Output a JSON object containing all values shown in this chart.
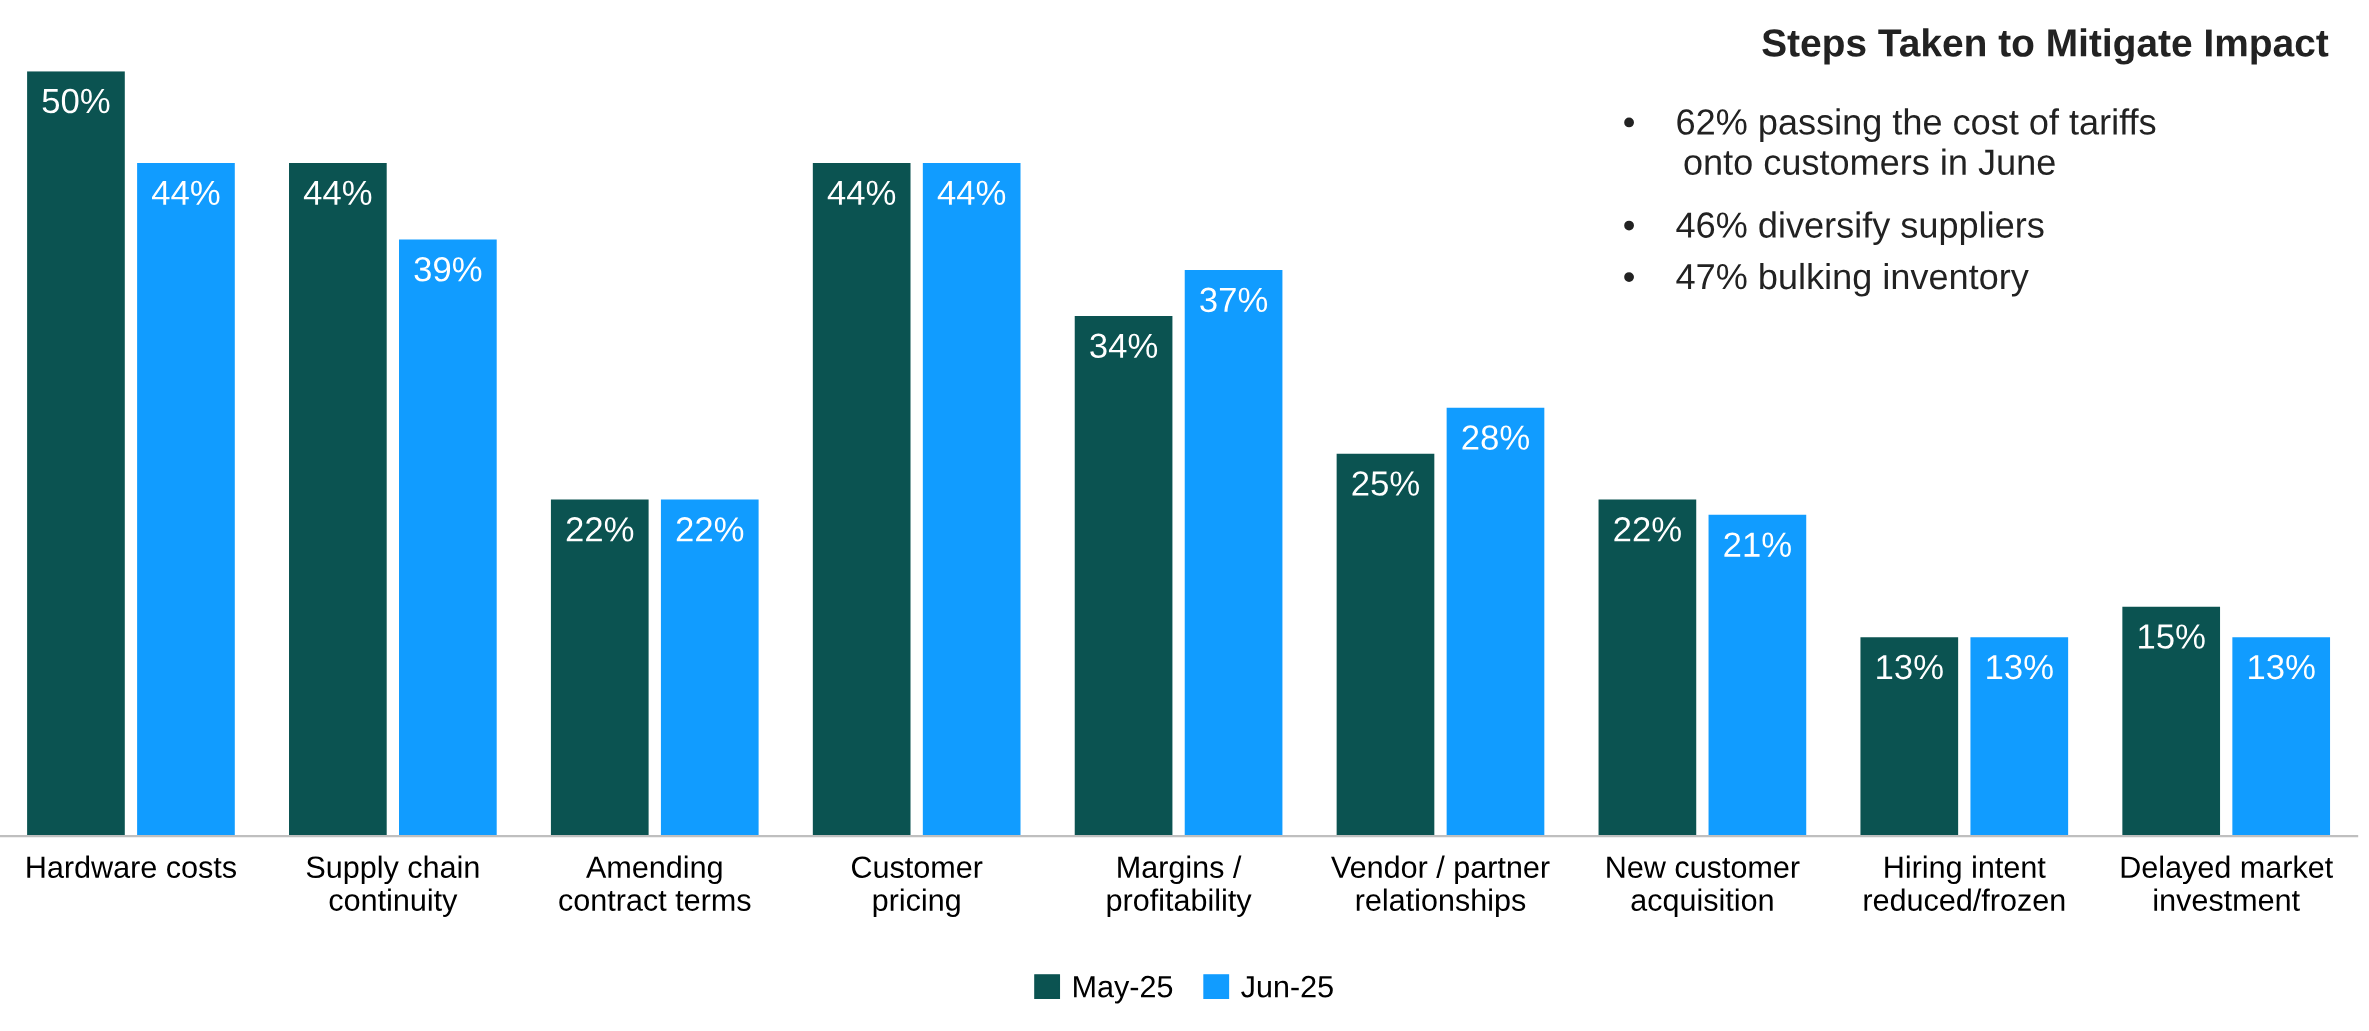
{
  "chart_data": {
    "type": "bar",
    "title": "Steps Taken to Mitigate Impact",
    "annotations": [
      "•    62% passing the cost of tariffs\n      onto customers in June",
      "•    46% diversify suppliers",
      "•    47% bulking inventory"
    ],
    "categories": [
      "Hardware costs",
      "Supply chain\ncontinuity",
      "Amending\ncontract terms",
      "Customer\npricing",
      "Margins /\nprofitability",
      "Vendor / partner\nrelationships",
      "New customer\nacquisition",
      "Hiring intent\nreduced/frozen",
      "Delayed market\ninvestment"
    ],
    "series": [
      {
        "name": "May-25",
        "color": "#0b5351",
        "values": [
          50,
          44,
          22,
          44,
          34,
          25,
          22,
          13,
          15
        ],
        "value_labels": [
          "50%",
          "44%",
          "22%",
          "44%",
          "34%",
          "25%",
          "22%",
          "13%",
          "15%"
        ]
      },
      {
        "name": "Jun-25",
        "color": "#119cff",
        "values": [
          44,
          39,
          22,
          44,
          37,
          28,
          21,
          13,
          13
        ],
        "value_labels": [
          "44%",
          "39%",
          "22%",
          "44%",
          "37%",
          "28%",
          "21%",
          "13%",
          "13%"
        ]
      }
    ],
    "legend": "bottom",
    "grid": false
  }
}
